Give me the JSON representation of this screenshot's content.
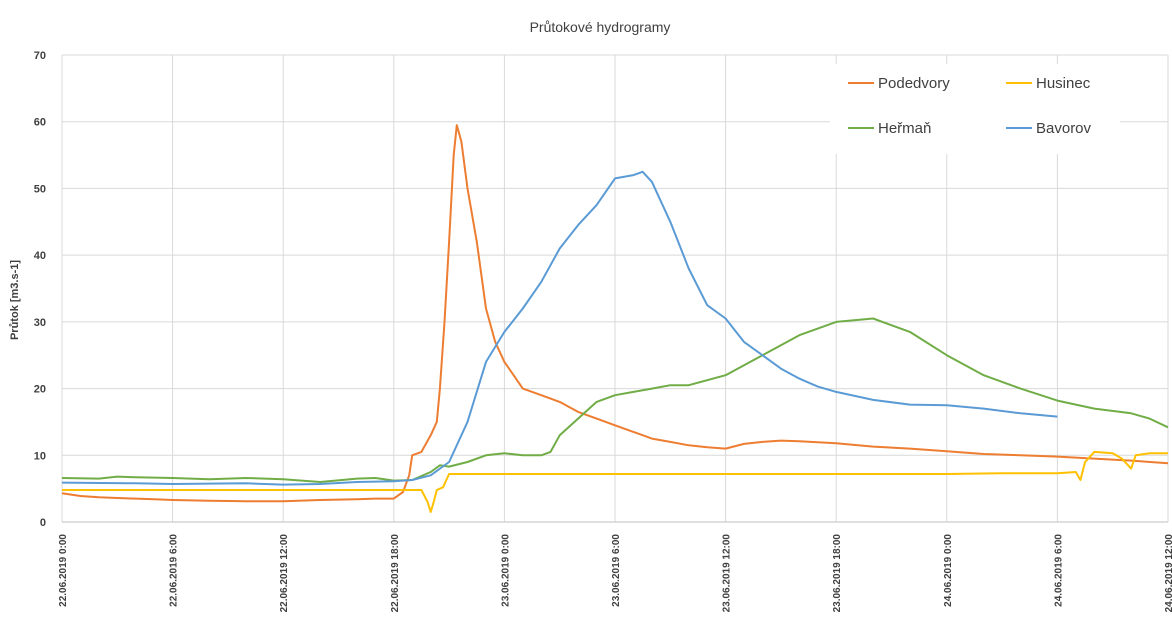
{
  "chart_data": {
    "type": "line",
    "title": "Průtokové hydrogramy",
    "ylabel": "Průtok [m3.s-1]",
    "xlabel": "",
    "ylim": [
      0,
      70
    ],
    "yticks": [
      0,
      10,
      20,
      30,
      40,
      50,
      60,
      70
    ],
    "xlim": [
      "22.06.2019 0:00",
      "24.06.2019 12:00"
    ],
    "xticks": [
      "22.06.2019 0:00",
      "22.06.2019 6:00",
      "22.06.2019 12:00",
      "22.06.2019 18:00",
      "23.06.2019 0:00",
      "23.06.2019 6:00",
      "23.06.2019 12:00",
      "23.06.2019 18:00",
      "24.06.2019 0:00",
      "24.06.2019 6:00",
      "24.06.2019 12:00"
    ],
    "grid": true,
    "legend": "top-right",
    "series": [
      {
        "name": "Podedvory",
        "color": "#ED7D31",
        "points": [
          [
            "22.06.2019 0:00",
            4.3
          ],
          [
            "22.06.2019 1:00",
            3.9
          ],
          [
            "22.06.2019 2:00",
            3.7
          ],
          [
            "22.06.2019 3:00",
            3.6
          ],
          [
            "22.06.2019 4:00",
            3.5
          ],
          [
            "22.06.2019 5:00",
            3.4
          ],
          [
            "22.06.2019 6:00",
            3.3
          ],
          [
            "22.06.2019 8:00",
            3.2
          ],
          [
            "22.06.2019 10:00",
            3.1
          ],
          [
            "22.06.2019 12:00",
            3.1
          ],
          [
            "22.06.2019 14:00",
            3.3
          ],
          [
            "22.06.2019 16:00",
            3.4
          ],
          [
            "22.06.2019 17:00",
            3.5
          ],
          [
            "22.06.2019 18:00",
            3.5
          ],
          [
            "22.06.2019 18:30",
            4.5
          ],
          [
            "22.06.2019 18:50",
            7
          ],
          [
            "22.06.2019 19:00",
            10
          ],
          [
            "22.06.2019 19:30",
            10.5
          ],
          [
            "22.06.2019 20:00",
            13
          ],
          [
            "22.06.2019 20:20",
            15
          ],
          [
            "22.06.2019 20:30",
            20
          ],
          [
            "22.06.2019 20:45",
            30
          ],
          [
            "22.06.2019 21:00",
            42
          ],
          [
            "22.06.2019 21:15",
            55
          ],
          [
            "22.06.2019 21:25",
            59.5
          ],
          [
            "22.06.2019 21:40",
            57
          ],
          [
            "22.06.2019 22:00",
            50
          ],
          [
            "22.06.2019 22:30",
            42
          ],
          [
            "22.06.2019 23:00",
            32
          ],
          [
            "22.06.2019 23:30",
            27
          ],
          [
            "23.06.2019 0:00",
            24
          ],
          [
            "23.06.2019 0:30",
            22
          ],
          [
            "23.06.2019 1:00",
            20
          ],
          [
            "23.06.2019 2:00",
            19
          ],
          [
            "23.06.2019 3:00",
            18
          ],
          [
            "23.06.2019 4:00",
            16.5
          ],
          [
            "23.06.2019 5:00",
            15.5
          ],
          [
            "23.06.2019 6:00",
            14.5
          ],
          [
            "23.06.2019 7:00",
            13.5
          ],
          [
            "23.06.2019 8:00",
            12.5
          ],
          [
            "23.06.2019 9:00",
            12
          ],
          [
            "23.06.2019 10:00",
            11.5
          ],
          [
            "23.06.2019 11:00",
            11.2
          ],
          [
            "23.06.2019 12:00",
            11
          ],
          [
            "23.06.2019 13:00",
            11.7
          ],
          [
            "23.06.2019 14:00",
            12
          ],
          [
            "23.06.2019 15:00",
            12.2
          ],
          [
            "23.06.2019 16:00",
            12.1
          ],
          [
            "23.06.2019 18:00",
            11.8
          ],
          [
            "23.06.2019 20:00",
            11.3
          ],
          [
            "23.06.2019 22:00",
            11
          ],
          [
            "24.06.2019 0:00",
            10.6
          ],
          [
            "24.06.2019 2:00",
            10.2
          ],
          [
            "24.06.2019 4:00",
            10
          ],
          [
            "24.06.2019 6:00",
            9.8
          ],
          [
            "24.06.2019 8:00",
            9.5
          ],
          [
            "24.06.2019 10:00",
            9.2
          ],
          [
            "24.06.2019 12:00",
            8.8
          ]
        ]
      },
      {
        "name": "Husinec",
        "color": "#FFC000",
        "points": [
          [
            "22.06.2019 0:00",
            4.8
          ],
          [
            "22.06.2019 12:00",
            4.8
          ],
          [
            "22.06.2019 18:00",
            4.8
          ],
          [
            "22.06.2019 19:30",
            4.8
          ],
          [
            "22.06.2019 19:50",
            3
          ],
          [
            "22.06.2019 20:00",
            1.5
          ],
          [
            "22.06.2019 20:10",
            3
          ],
          [
            "22.06.2019 20:20",
            4.8
          ],
          [
            "22.06.2019 20:40",
            5.2
          ],
          [
            "22.06.2019 21:00",
            7.2
          ],
          [
            "23.06.2019 0:00",
            7.2
          ],
          [
            "23.06.2019 12:00",
            7.2
          ],
          [
            "24.06.2019 0:00",
            7.2
          ],
          [
            "24.06.2019 3:00",
            7.3
          ],
          [
            "24.06.2019 6:00",
            7.3
          ],
          [
            "24.06.2019 7:00",
            7.5
          ],
          [
            "24.06.2019 7:15",
            6.3
          ],
          [
            "24.06.2019 7:30",
            9
          ],
          [
            "24.06.2019 8:00",
            10.5
          ],
          [
            "24.06.2019 9:00",
            10.3
          ],
          [
            "24.06.2019 9:30",
            9.5
          ],
          [
            "24.06.2019 10:00",
            8
          ],
          [
            "24.06.2019 10:15",
            10
          ],
          [
            "24.06.2019 11:00",
            10.3
          ],
          [
            "24.06.2019 12:00",
            10.3
          ]
        ]
      },
      {
        "name": "Heřmaň",
        "color": "#70AD47",
        "points": [
          [
            "22.06.2019 0:00",
            6.6
          ],
          [
            "22.06.2019 2:00",
            6.5
          ],
          [
            "22.06.2019 3:00",
            6.8
          ],
          [
            "22.06.2019 4:00",
            6.7
          ],
          [
            "22.06.2019 6:00",
            6.6
          ],
          [
            "22.06.2019 8:00",
            6.4
          ],
          [
            "22.06.2019 10:00",
            6.6
          ],
          [
            "22.06.2019 12:00",
            6.4
          ],
          [
            "22.06.2019 14:00",
            6.0
          ],
          [
            "22.06.2019 16:00",
            6.5
          ],
          [
            "22.06.2019 17:00",
            6.6
          ],
          [
            "22.06.2019 18:00",
            6.2
          ],
          [
            "22.06.2019 19:00",
            6.3
          ],
          [
            "22.06.2019 20:00",
            7.5
          ],
          [
            "22.06.2019 20:30",
            8.5
          ],
          [
            "22.06.2019 21:00",
            8.3
          ],
          [
            "22.06.2019 22:00",
            9
          ],
          [
            "22.06.2019 23:00",
            10
          ],
          [
            "23.06.2019 0:00",
            10.3
          ],
          [
            "23.06.2019 1:00",
            10
          ],
          [
            "23.06.2019 2:00",
            10
          ],
          [
            "23.06.2019 2:30",
            10.5
          ],
          [
            "23.06.2019 3:00",
            13
          ],
          [
            "23.06.2019 4:00",
            15.5
          ],
          [
            "23.06.2019 5:00",
            18
          ],
          [
            "23.06.2019 6:00",
            19
          ],
          [
            "23.06.2019 7:00",
            19.5
          ],
          [
            "23.06.2019 8:00",
            20
          ],
          [
            "23.06.2019 9:00",
            20.5
          ],
          [
            "23.06.2019 10:00",
            20.5
          ],
          [
            "23.06.2019 12:00",
            22
          ],
          [
            "23.06.2019 14:00",
            25
          ],
          [
            "23.06.2019 16:00",
            28
          ],
          [
            "23.06.2019 18:00",
            30
          ],
          [
            "23.06.2019 20:00",
            30.5
          ],
          [
            "23.06.2019 22:00",
            28.5
          ],
          [
            "24.06.2019 0:00",
            25
          ],
          [
            "24.06.2019 2:00",
            22
          ],
          [
            "24.06.2019 4:00",
            20
          ],
          [
            "24.06.2019 6:00",
            18.2
          ],
          [
            "24.06.2019 8:00",
            17
          ],
          [
            "24.06.2019 10:00",
            16.3
          ],
          [
            "24.06.2019 11:00",
            15.5
          ],
          [
            "24.06.2019 12:00",
            14.2
          ]
        ]
      },
      {
        "name": "Bavorov",
        "color": "#5B9BD5",
        "points": [
          [
            "22.06.2019 0:00",
            5.9
          ],
          [
            "22.06.2019 4:00",
            5.8
          ],
          [
            "22.06.2019 6:00",
            5.7
          ],
          [
            "22.06.2019 10:00",
            5.8
          ],
          [
            "22.06.2019 12:00",
            5.6
          ],
          [
            "22.06.2019 14:00",
            5.7
          ],
          [
            "22.06.2019 16:00",
            6.0
          ],
          [
            "22.06.2019 18:00",
            6.1
          ],
          [
            "22.06.2019 19:00",
            6.3
          ],
          [
            "22.06.2019 20:00",
            7
          ],
          [
            "22.06.2019 21:00",
            9
          ],
          [
            "22.06.2019 22:00",
            15
          ],
          [
            "22.06.2019 23:00",
            24
          ],
          [
            "23.06.2019 0:00",
            28.5
          ],
          [
            "23.06.2019 1:00",
            32
          ],
          [
            "23.06.2019 2:00",
            36
          ],
          [
            "23.06.2019 3:00",
            41
          ],
          [
            "23.06.2019 4:00",
            44.5
          ],
          [
            "23.06.2019 5:00",
            47.5
          ],
          [
            "23.06.2019 6:00",
            51.5
          ],
          [
            "23.06.2019 7:00",
            52
          ],
          [
            "23.06.2019 7:30",
            52.5
          ],
          [
            "23.06.2019 8:00",
            51
          ],
          [
            "23.06.2019 9:00",
            45
          ],
          [
            "23.06.2019 10:00",
            38
          ],
          [
            "23.06.2019 11:00",
            32.5
          ],
          [
            "23.06.2019 12:00",
            30.5
          ],
          [
            "23.06.2019 13:00",
            27
          ],
          [
            "23.06.2019 14:00",
            25
          ],
          [
            "23.06.2019 15:00",
            23
          ],
          [
            "23.06.2019 16:00",
            21.5
          ],
          [
            "23.06.2019 17:00",
            20.3
          ],
          [
            "23.06.2019 18:00",
            19.5
          ],
          [
            "23.06.2019 20:00",
            18.3
          ],
          [
            "23.06.2019 22:00",
            17.6
          ],
          [
            "24.06.2019 0:00",
            17.5
          ],
          [
            "24.06.2019 2:00",
            17
          ],
          [
            "24.06.2019 4:00",
            16.3
          ],
          [
            "24.06.2019 6:00",
            15.8
          ]
        ]
      }
    ]
  }
}
